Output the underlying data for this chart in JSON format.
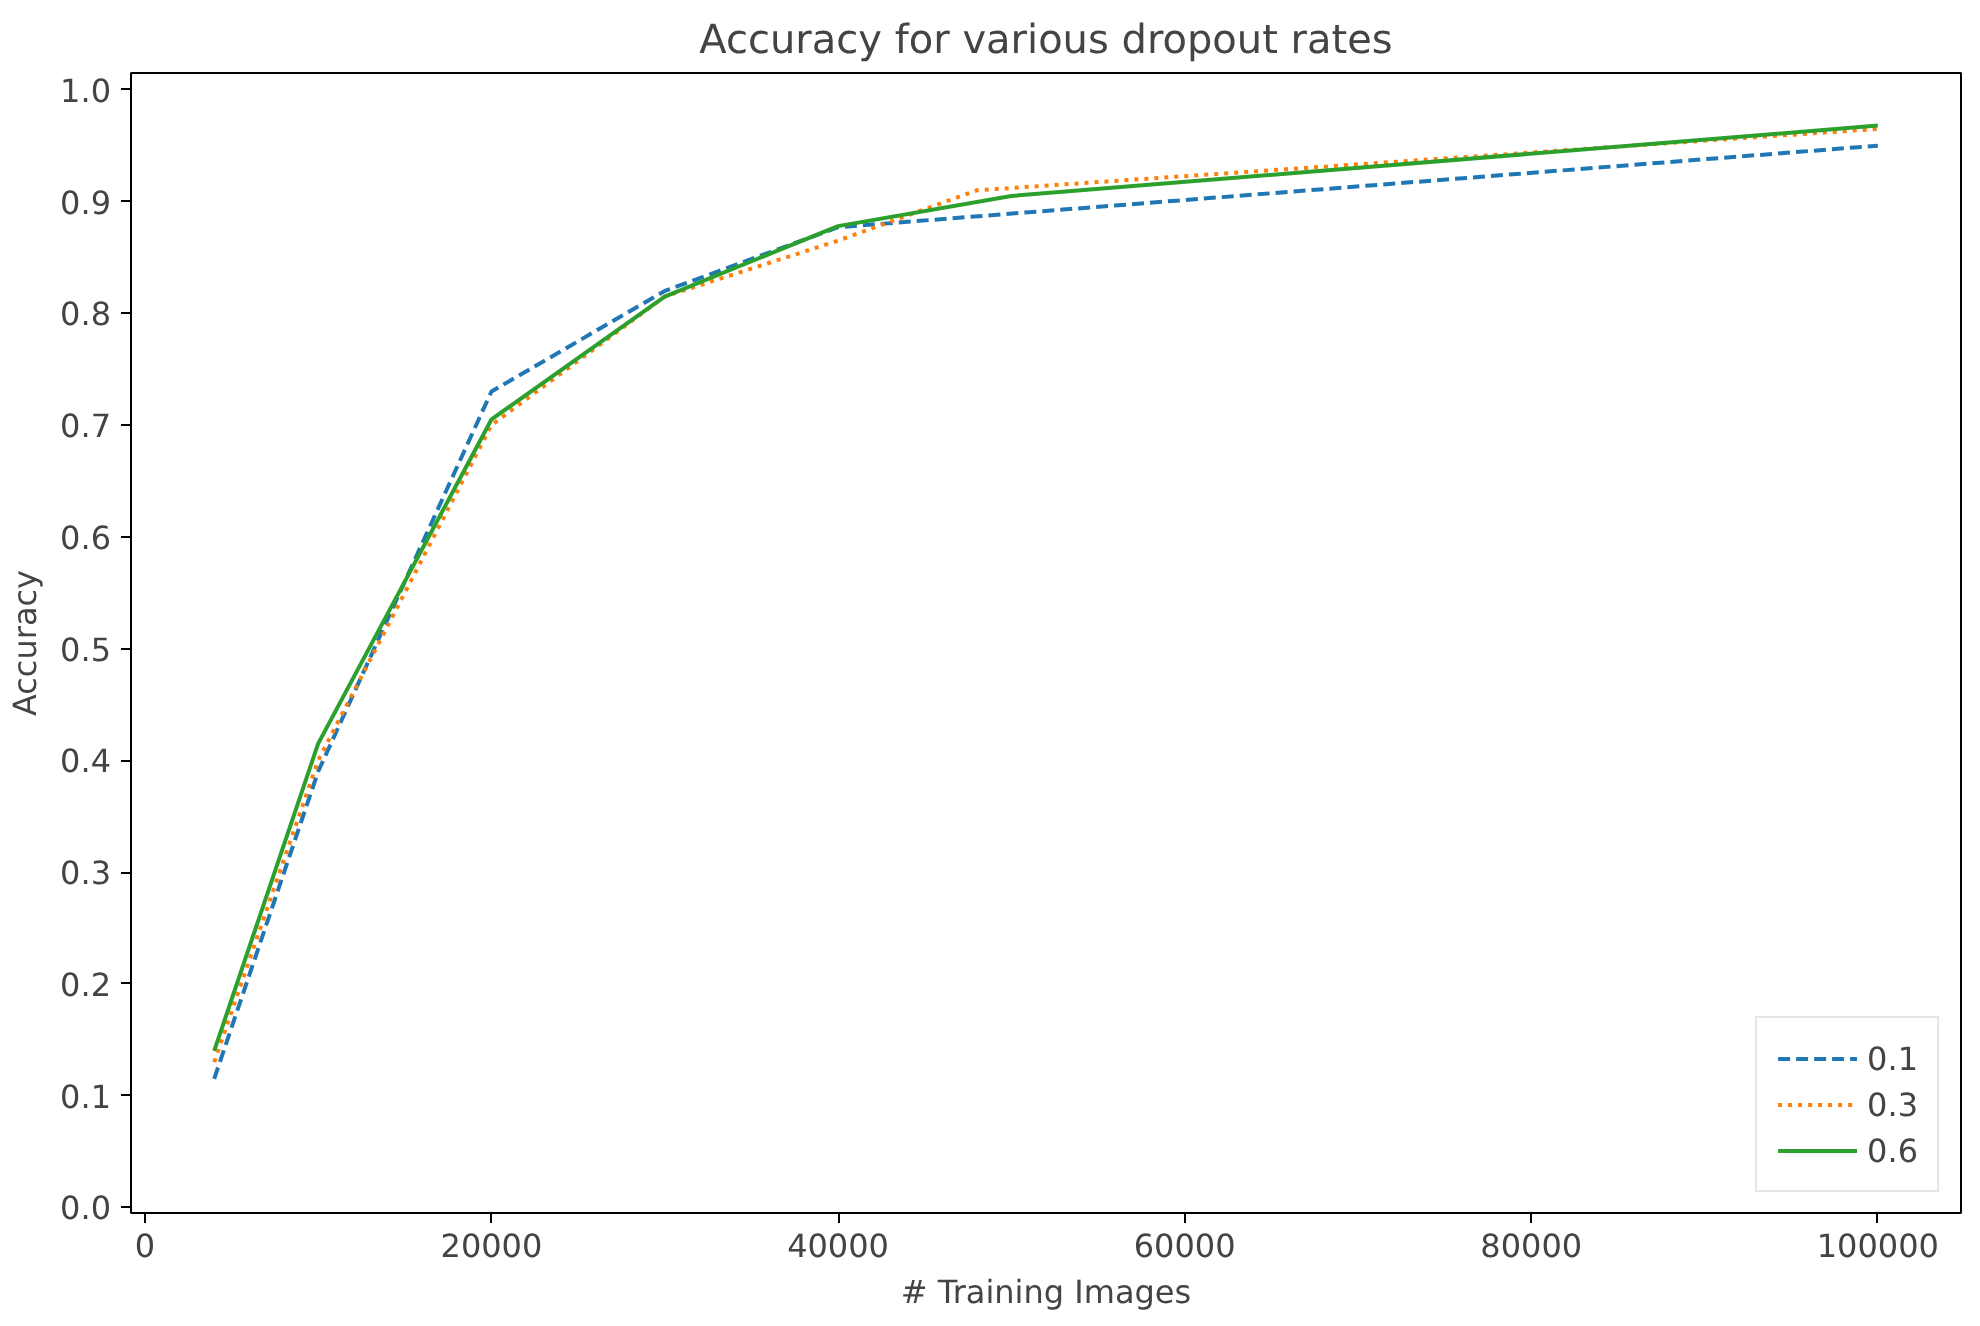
{
  "chart_data": {
    "type": "line",
    "title": "Accuracy for various dropout rates",
    "xlabel": "# Training Images",
    "ylabel": "Accuracy",
    "xlim": [
      -800,
      104800
    ],
    "ylim": [
      -0.005,
      1.015
    ],
    "xticks": [
      0,
      20000,
      40000,
      60000,
      80000,
      100000
    ],
    "yticks": [
      {
        "value": 0,
        "label": "0.0"
      },
      0.1,
      0.2,
      0.3,
      0.4,
      0.5,
      0.6,
      0.7,
      0.8,
      0.9,
      {
        "value": 1,
        "label": "1.0"
      }
    ],
    "grid": false,
    "legend": "bottom right",
    "marker": "none",
    "series": [
      {
        "name": "0.1",
        "color": "#1f77b4",
        "line_style": "dashed",
        "x": [
          4000,
          10000,
          20000,
          30000,
          40000,
          100000
        ],
        "values": [
          0.115,
          0.39,
          0.73,
          0.82,
          0.877,
          0.95
        ]
      },
      {
        "name": "0.3",
        "color": "#ff7f0e",
        "line_style": "dotted",
        "x": [
          4000,
          10000,
          20000,
          30000,
          40000,
          48000,
          100000
        ],
        "values": [
          0.13,
          0.4,
          0.7,
          0.815,
          0.865,
          0.91,
          0.965
        ]
      },
      {
        "name": "0.6",
        "color": "#2ca02c",
        "line_style": "solid",
        "x": [
          4000,
          10000,
          20000,
          30000,
          40000,
          50000,
          100000
        ],
        "values": [
          0.14,
          0.415,
          0.705,
          0.815,
          0.878,
          0.905,
          0.968
        ]
      }
    ]
  }
}
